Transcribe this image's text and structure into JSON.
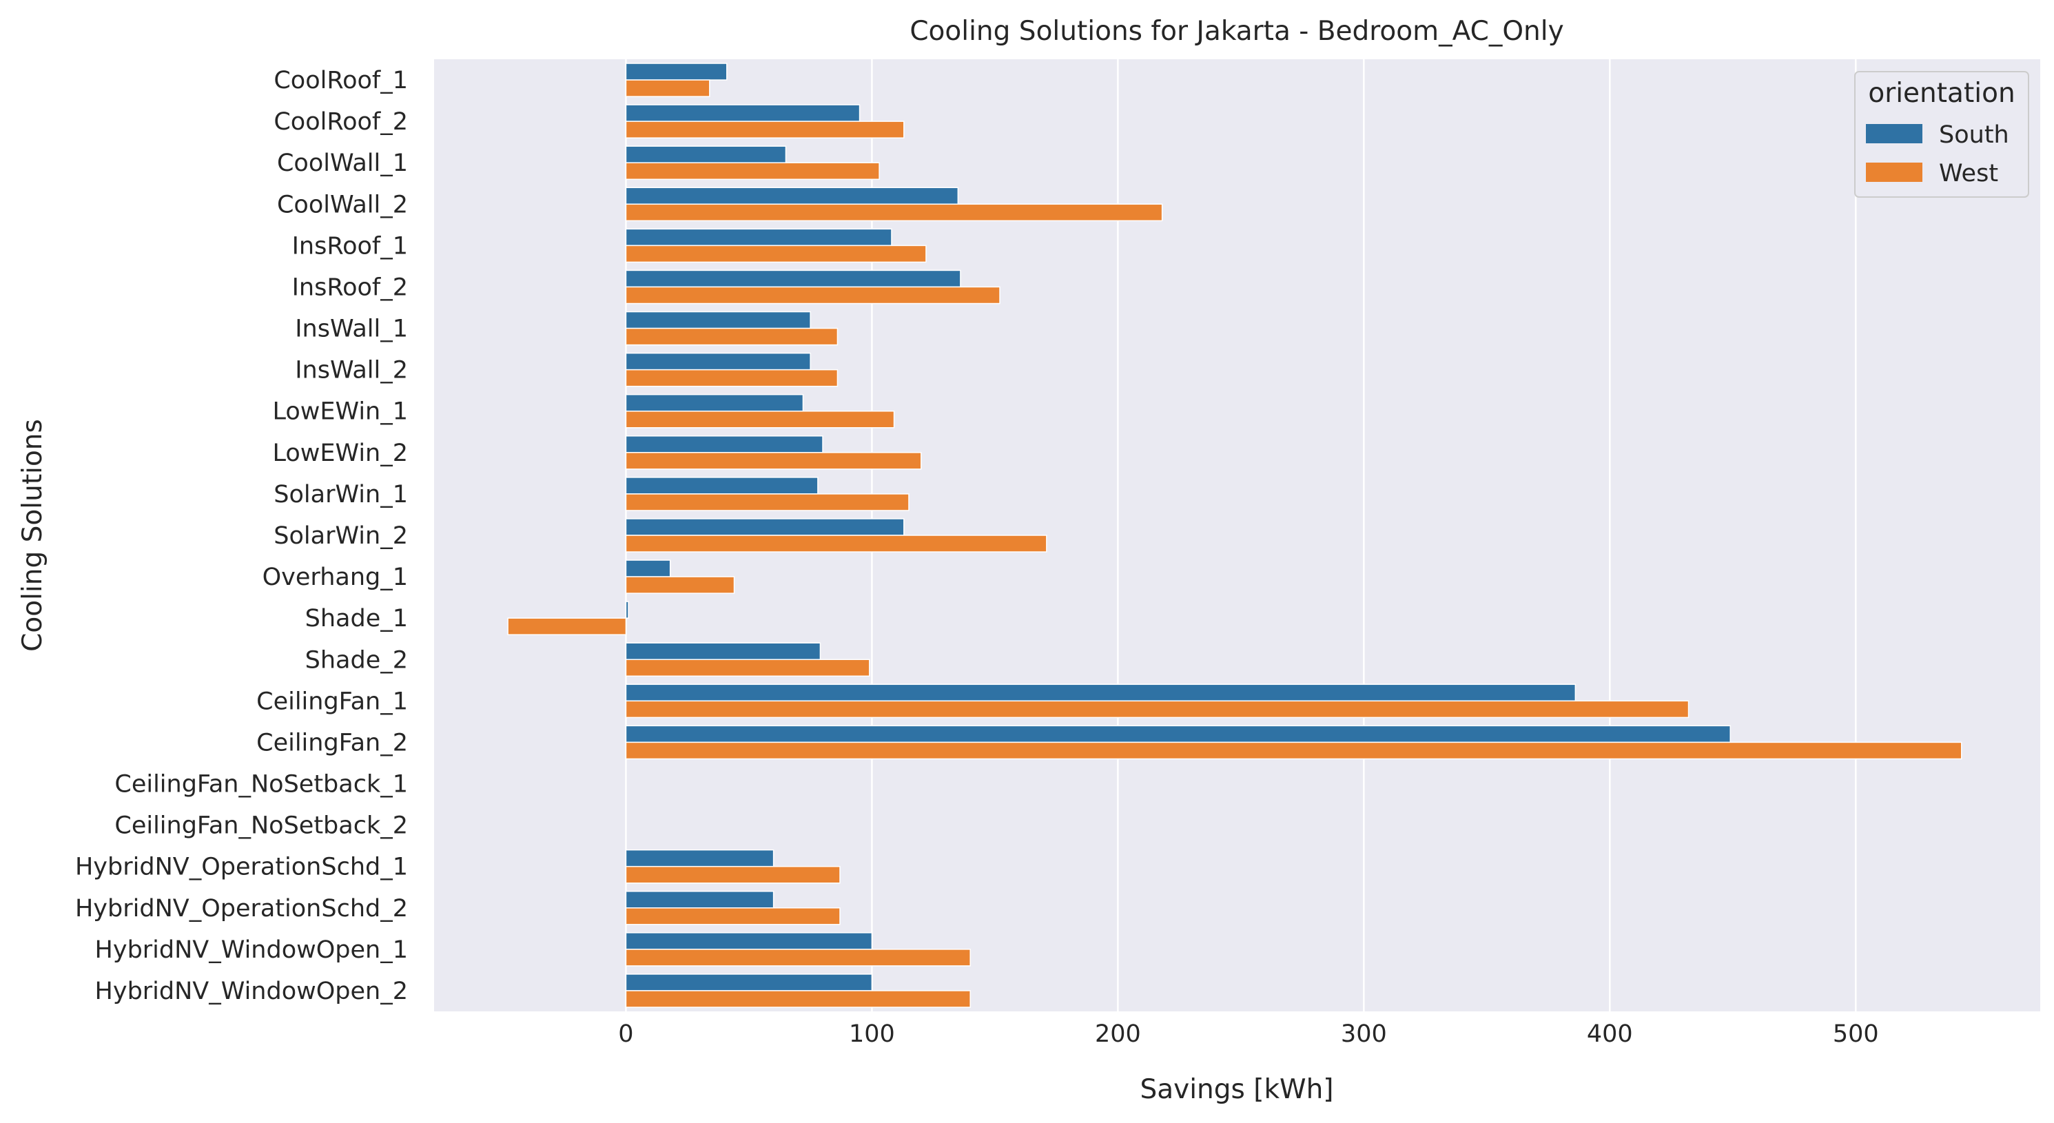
{
  "chart_data": {
    "type": "bar",
    "orientation": "horizontal",
    "title": "Cooling Solutions for Jakarta - Bedroom_AC_Only",
    "xlabel": "Savings [kWh]",
    "ylabel": "Cooling Solutions",
    "xlim": [
      -78,
      575
    ],
    "xticks": [
      0,
      100,
      200,
      300,
      400,
      500
    ],
    "grid": true,
    "legend": {
      "title": "orientation",
      "placement": "top-right"
    },
    "categories": [
      "CoolRoof_1",
      "CoolRoof_2",
      "CoolWall_1",
      "CoolWall_2",
      "InsRoof_1",
      "InsRoof_2",
      "InsWall_1",
      "InsWall_2",
      "LowEWin_1",
      "LowEWin_2",
      "SolarWin_1",
      "SolarWin_2",
      "Overhang_1",
      "Shade_1",
      "Shade_2",
      "CeilingFan_1",
      "CeilingFan_2",
      "CeilingFan_NoSetback_1",
      "CeilingFan_NoSetback_2",
      "HybridNV_OperationSchd_1",
      "HybridNV_OperationSchd_2",
      "HybridNV_WindowOpen_1",
      "HybridNV_WindowOpen_2"
    ],
    "series": [
      {
        "name": "South",
        "color": "#2f72a4",
        "values": [
          41,
          95,
          65,
          135,
          108,
          136,
          75,
          75,
          72,
          80,
          78,
          113,
          18,
          1,
          79,
          386,
          449,
          0,
          0,
          60,
          60,
          100,
          100
        ]
      },
      {
        "name": "West",
        "color": "#ea8330",
        "values": [
          34,
          113,
          103,
          218,
          122,
          152,
          86,
          86,
          109,
          120,
          115,
          171,
          44,
          -48,
          99,
          432,
          543,
          0,
          0,
          87,
          87,
          140,
          140
        ]
      }
    ]
  }
}
